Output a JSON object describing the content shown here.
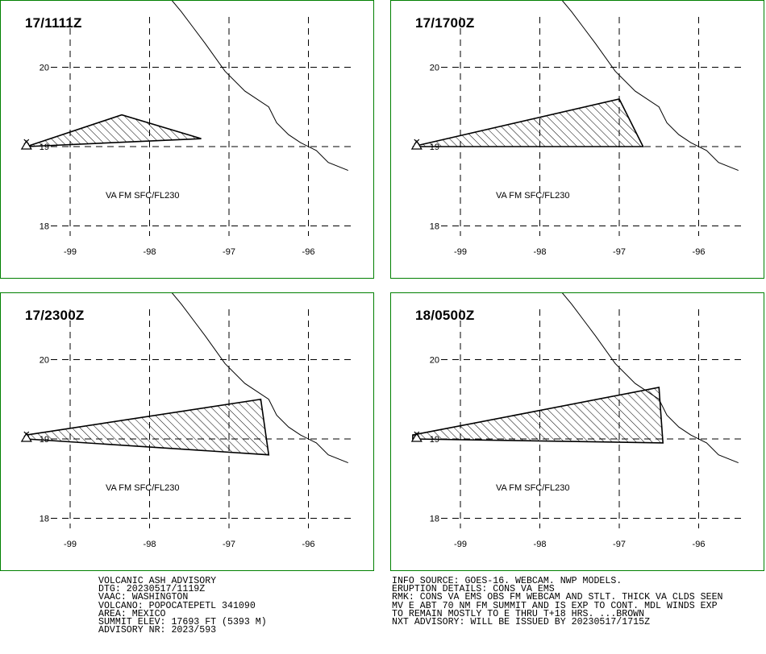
{
  "panels": [
    {
      "time": "17/1111Z",
      "layer": "VA FM SFC/FL230",
      "polygon": [
        [
          -99.55,
          19.0
        ],
        [
          -98.35,
          19.4
        ],
        [
          -97.35,
          19.1
        ],
        [
          -99.55,
          19.0
        ]
      ]
    },
    {
      "time": "17/1700Z",
      "layer": "VA FM SFC/FL230",
      "polygon": [
        [
          -99.6,
          19.0
        ],
        [
          -97.0,
          19.6
        ],
        [
          -96.7,
          19.0
        ],
        [
          -99.6,
          19.0
        ]
      ]
    },
    {
      "time": "17/2300Z",
      "layer": "VA FM SFC/FL230",
      "polygon": [
        [
          -99.55,
          19.05
        ],
        [
          -96.6,
          19.5
        ],
        [
          -96.5,
          18.8
        ],
        [
          -99.55,
          19.0
        ]
      ]
    },
    {
      "time": "18/0500Z",
      "layer": "VA FM SFC/FL230",
      "polygon": [
        [
          -99.6,
          19.05
        ],
        [
          -96.5,
          19.65
        ],
        [
          -96.45,
          18.95
        ],
        [
          -99.6,
          19.0
        ]
      ]
    }
  ],
  "axes": {
    "lon_ticks": [
      "-99",
      "-98",
      "-97",
      "-96"
    ],
    "lat_ticks": [
      "20",
      "19",
      "18"
    ],
    "lon_values": [
      -99,
      -98,
      -97,
      -96
    ],
    "lat_values": [
      20,
      19,
      18
    ]
  },
  "volcano": {
    "lon": -99.55,
    "lat": 19.02
  },
  "coastline": [
    [
      -97.85,
      21.0
    ],
    [
      -97.6,
      20.7
    ],
    [
      -97.45,
      20.5
    ],
    [
      -97.3,
      20.3
    ],
    [
      -97.05,
      19.95
    ],
    [
      -96.8,
      19.7
    ],
    [
      -96.5,
      19.5
    ],
    [
      -96.4,
      19.3
    ],
    [
      -96.25,
      19.15
    ],
    [
      -96.1,
      19.05
    ],
    [
      -95.9,
      18.95
    ],
    [
      -95.75,
      18.8
    ],
    [
      -95.5,
      18.7
    ]
  ],
  "advisory_left": [
    "VOLCANIC ASH ADVISORY",
    "DTG: 20230517/1119Z",
    "VAAC: WASHINGTON",
    "VOLCANO: POPOCATEPETL 341090",
    "AREA: MEXICO",
    "SUMMIT ELEV: 17693 FT (5393 M)",
    "ADVISORY NR: 2023/593"
  ],
  "advisory_right": [
    "INFO SOURCE: GOES-16. WEBCAM. NWP MODELS.",
    "ERUPTION DETAILS: CONS VA EMS",
    "RMK: CONS VA EMS OBS FM WEBCAM AND STLT. THICK VA CLDS SEEN",
    "MV E ABT 70 NM FM SUMMIT AND IS EXP TO CONT. MDL WINDS EXP",
    "TO REMAIN MOSTLY TO E THRU T+18 HRS. ...BROWN",
    "NXT ADVISORY: WILL BE ISSUED BY 20230517/1715Z"
  ],
  "colors": {
    "frame": "#008000",
    "plume": "#000000"
  }
}
